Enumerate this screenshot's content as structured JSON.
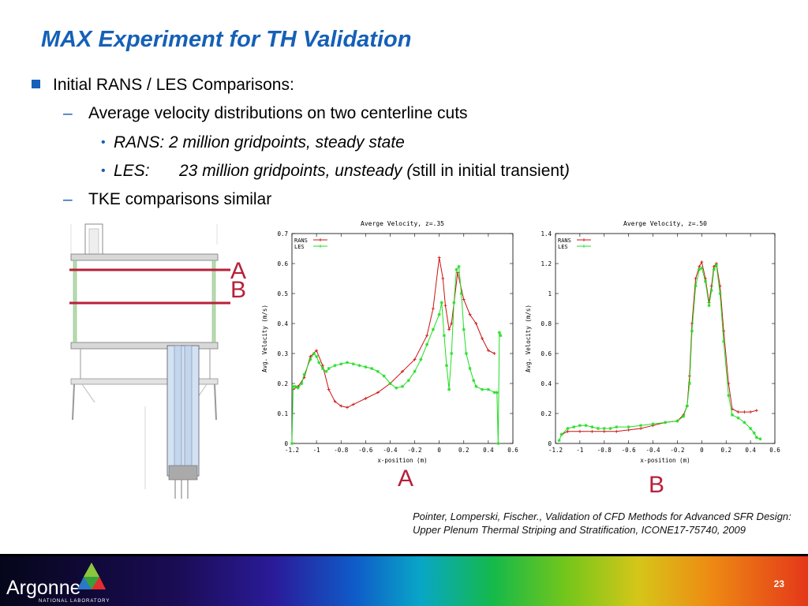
{
  "slide": {
    "title": "MAX Experiment for TH Validation",
    "bullets": {
      "level1": "Initial RANS / LES Comparisons:",
      "sub1": "Average velocity distributions on two centerline cuts",
      "rans_label": "RANS:",
      "rans_text": " 2 million gridpoints, steady state",
      "les_label": "LES:",
      "les_text_italic": "23 million gridpoints, unsteady (",
      "les_text_plain": "still in initial transient",
      "les_text_close": ")",
      "sub2": "TKE comparisons similar"
    },
    "cut_labels": {
      "a": "A",
      "b": "B"
    },
    "chart_labels": {
      "a": "A",
      "b": "B"
    },
    "citation": "Pointer, Lomperski, Fischer., Validation of CFD Methods for Advanced SFR Design: Upper Plenum Thermal Striping and Stratification, ICONE17-75740, 2009",
    "footer": {
      "logo": "Argonne",
      "logo_sub": "NATIONAL LABORATORY",
      "page": "23"
    }
  },
  "colors": {
    "accent": "#1560b8",
    "cut_line": "#b7203a",
    "rans": "#cc1111",
    "les": "#22dd22"
  },
  "chart_data": [
    {
      "type": "line",
      "title": "Averge Velocity, z=.35",
      "xlabel": "x-position (m)",
      "ylabel": "Avg. Velocity (m/s)",
      "xlim": [
        -1.2,
        0.6
      ],
      "ylim": [
        0,
        0.7
      ],
      "xticks": [
        "-1.2",
        "-1",
        "-0.8",
        "-0.6",
        "-0.4",
        "-0.2",
        "0",
        "0.2",
        "0.4",
        "0.6"
      ],
      "yticks": [
        "0",
        "0.1",
        "0.2",
        "0.3",
        "0.4",
        "0.5",
        "0.6",
        "0.7"
      ],
      "legend": "top-left",
      "grid": false,
      "series": [
        {
          "name": "RANS",
          "color": "#cc1111",
          "x": [
            -1.19,
            -1.15,
            -1.1,
            -1.05,
            -1.0,
            -0.95,
            -0.9,
            -0.85,
            -0.8,
            -0.75,
            -0.7,
            -0.6,
            -0.5,
            -0.4,
            -0.3,
            -0.2,
            -0.1,
            -0.05,
            0.0,
            0.03,
            0.05,
            0.08,
            0.1,
            0.15,
            0.2,
            0.25,
            0.3,
            0.35,
            0.4,
            0.45
          ],
          "y": [
            0.18,
            0.19,
            0.22,
            0.29,
            0.31,
            0.26,
            0.18,
            0.14,
            0.125,
            0.12,
            0.13,
            0.15,
            0.17,
            0.2,
            0.24,
            0.28,
            0.36,
            0.45,
            0.62,
            0.55,
            0.46,
            0.38,
            0.4,
            0.57,
            0.48,
            0.43,
            0.4,
            0.35,
            0.31,
            0.3
          ]
        },
        {
          "name": "LES",
          "color": "#22dd22",
          "x": [
            -1.2,
            -1.19,
            -1.17,
            -1.15,
            -1.12,
            -1.1,
            -1.05,
            -1.02,
            -1.0,
            -0.98,
            -0.95,
            -0.92,
            -0.9,
            -0.85,
            -0.8,
            -0.75,
            -0.7,
            -0.65,
            -0.6,
            -0.55,
            -0.5,
            -0.45,
            -0.4,
            -0.35,
            -0.3,
            -0.25,
            -0.2,
            -0.15,
            -0.1,
            -0.05,
            0.0,
            0.02,
            0.04,
            0.06,
            0.08,
            0.1,
            0.12,
            0.14,
            0.16,
            0.18,
            0.2,
            0.22,
            0.25,
            0.28,
            0.3,
            0.35,
            0.4,
            0.45,
            0.47,
            0.48,
            0.49,
            0.5
          ],
          "y": [
            0.0,
            0.19,
            0.19,
            0.185,
            0.2,
            0.23,
            0.28,
            0.3,
            0.29,
            0.27,
            0.25,
            0.24,
            0.25,
            0.26,
            0.265,
            0.27,
            0.265,
            0.26,
            0.255,
            0.25,
            0.24,
            0.225,
            0.2,
            0.185,
            0.19,
            0.21,
            0.24,
            0.28,
            0.33,
            0.38,
            0.43,
            0.47,
            0.36,
            0.26,
            0.18,
            0.3,
            0.47,
            0.58,
            0.59,
            0.5,
            0.38,
            0.3,
            0.25,
            0.21,
            0.19,
            0.18,
            0.18,
            0.17,
            0.17,
            0.0,
            0.37,
            0.36
          ]
        }
      ]
    },
    {
      "type": "line",
      "title": "Averge Velocity, z=.50",
      "xlabel": "x-position (m)",
      "ylabel": "Avg. Velocity (m/s)",
      "xlim": [
        -1.2,
        0.6
      ],
      "ylim": [
        0,
        1.4
      ],
      "xticks": [
        "-1.2",
        "-1",
        "-0.8",
        "-0.6",
        "-0.4",
        "-0.2",
        "0",
        "0.2",
        "0.4",
        "0.6"
      ],
      "yticks": [
        "0",
        "0.2",
        "0.4",
        "0.6",
        "0.8",
        "1",
        "1.2",
        "1.4"
      ],
      "legend": "top-left",
      "grid": false,
      "series": [
        {
          "name": "RANS",
          "color": "#cc1111",
          "x": [
            -1.15,
            -1.1,
            -1.0,
            -0.9,
            -0.8,
            -0.7,
            -0.6,
            -0.5,
            -0.4,
            -0.3,
            -0.2,
            -0.15,
            -0.12,
            -0.1,
            -0.08,
            -0.05,
            -0.02,
            0.0,
            0.03,
            0.06,
            0.08,
            0.1,
            0.12,
            0.15,
            0.18,
            0.22,
            0.25,
            0.3,
            0.35,
            0.4,
            0.45
          ],
          "y": [
            0.06,
            0.08,
            0.08,
            0.08,
            0.08,
            0.08,
            0.09,
            0.1,
            0.12,
            0.14,
            0.15,
            0.19,
            0.25,
            0.45,
            0.8,
            1.1,
            1.18,
            1.21,
            1.1,
            0.94,
            1.05,
            1.18,
            1.2,
            1.05,
            0.75,
            0.4,
            0.23,
            0.21,
            0.21,
            0.21,
            0.22
          ]
        },
        {
          "name": "LES",
          "color": "#22dd22",
          "x": [
            -1.17,
            -1.15,
            -1.1,
            -1.05,
            -1.0,
            -0.95,
            -0.9,
            -0.85,
            -0.8,
            -0.75,
            -0.7,
            -0.6,
            -0.5,
            -0.4,
            -0.3,
            -0.2,
            -0.15,
            -0.12,
            -0.1,
            -0.08,
            -0.05,
            -0.02,
            0.0,
            0.03,
            0.06,
            0.08,
            0.1,
            0.12,
            0.15,
            0.18,
            0.22,
            0.25,
            0.3,
            0.35,
            0.4,
            0.43,
            0.45,
            0.48
          ],
          "y": [
            0.02,
            0.06,
            0.1,
            0.11,
            0.12,
            0.12,
            0.11,
            0.1,
            0.1,
            0.1,
            0.11,
            0.11,
            0.12,
            0.13,
            0.14,
            0.15,
            0.18,
            0.25,
            0.4,
            0.75,
            1.05,
            1.16,
            1.17,
            1.08,
            0.92,
            1.02,
            1.16,
            1.19,
            1.0,
            0.68,
            0.32,
            0.19,
            0.17,
            0.14,
            0.1,
            0.07,
            0.04,
            0.03
          ]
        }
      ]
    }
  ]
}
